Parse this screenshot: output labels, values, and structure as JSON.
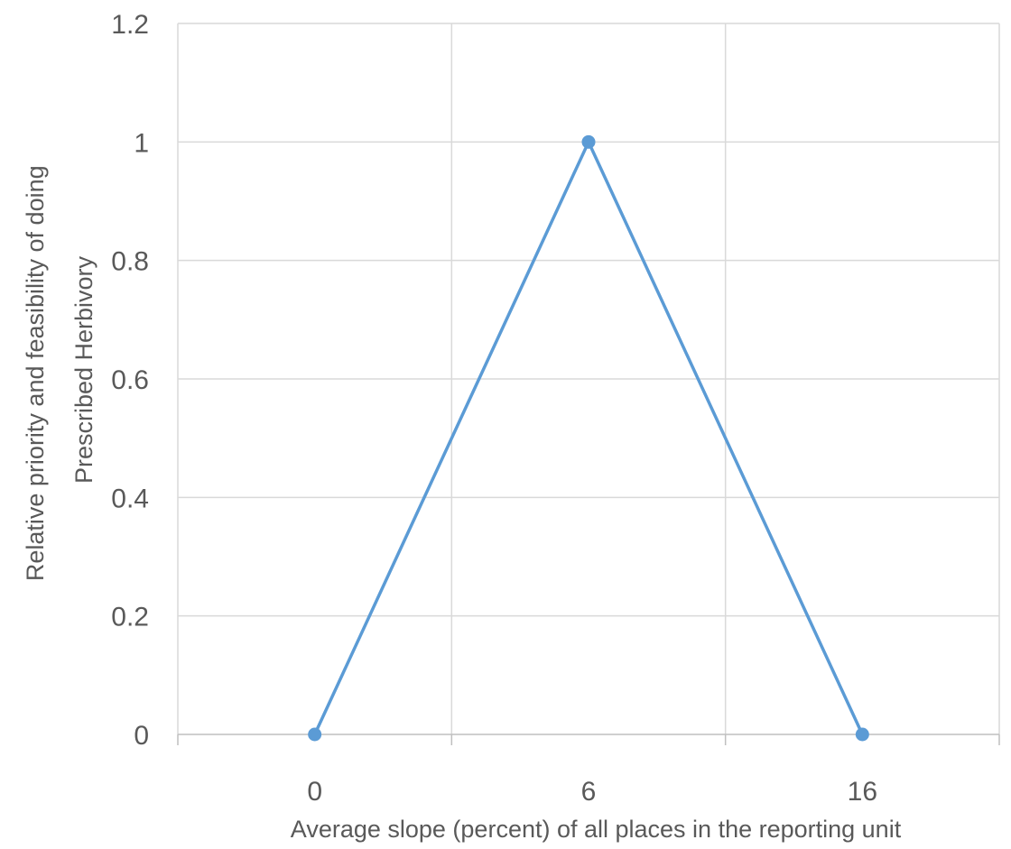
{
  "chart_data": {
    "type": "line",
    "x_axis_type": "category",
    "categories": [
      "0",
      "6",
      "16"
    ],
    "series": [
      {
        "values": [
          0,
          1,
          0
        ],
        "color": "#5b9bd5",
        "markers": true
      }
    ],
    "xlabel": "Average slope (percent)  of all places in the reporting unit",
    "ylabel_lines": [
      "Relative priority and feasibility of doing",
      "Prescribed Herbivory"
    ],
    "ylim": [
      0,
      1.2
    ],
    "yticks": [
      0,
      0.2,
      0.4,
      0.6,
      0.8,
      1,
      1.2
    ],
    "ytick_labels": [
      "0",
      "0.2",
      "0.4",
      "0.6",
      "0.8",
      "1",
      "1.2"
    ],
    "grid": true,
    "legend": "none"
  }
}
